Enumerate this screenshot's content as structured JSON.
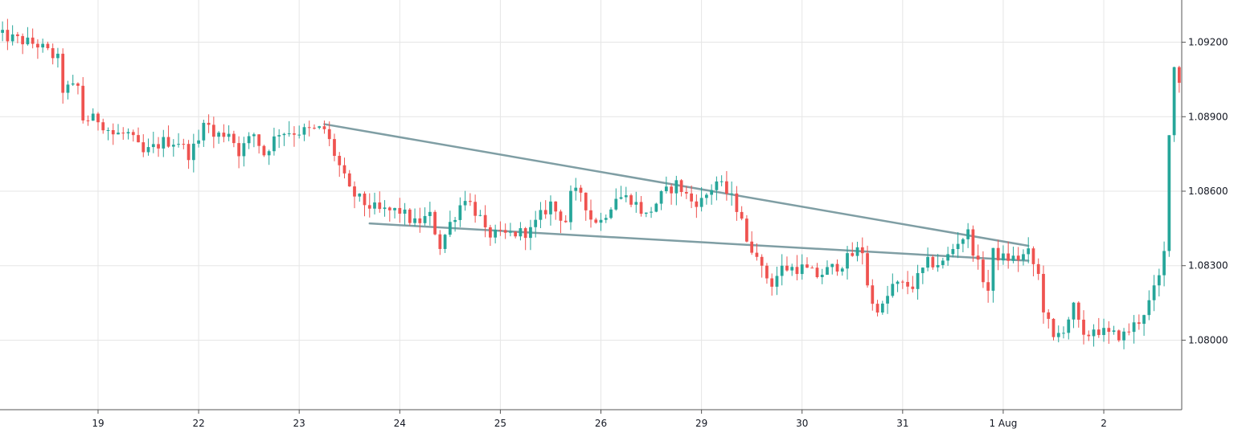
{
  "chart_data": {
    "type": "candlestick",
    "title": "",
    "xlabel": "",
    "ylabel": "",
    "grid": true,
    "colors": {
      "up": "#26a69a",
      "down": "#ef5350",
      "trendline": "#7f9ea4",
      "grid": "#e6e6e6",
      "axis": "#555555",
      "text": "#131722"
    },
    "ylim": [
      1.0772,
      1.0937
    ],
    "y_ticks": [
      {
        "value": 1.08,
        "label": "1.08000"
      },
      {
        "value": 1.083,
        "label": "1.08300"
      },
      {
        "value": 1.086,
        "label": "1.08600"
      },
      {
        "value": 1.089,
        "label": "1.08900"
      },
      {
        "value": 1.092,
        "label": "1.09200"
      }
    ],
    "x_ticks": [
      {
        "index": 20,
        "label": "19"
      },
      {
        "index": 40,
        "label": "22"
      },
      {
        "index": 60,
        "label": "23"
      },
      {
        "index": 80,
        "label": "24"
      },
      {
        "index": 100,
        "label": "25"
      },
      {
        "index": 120,
        "label": "26"
      },
      {
        "index": 140,
        "label": "29"
      },
      {
        "index": 160,
        "label": "30"
      },
      {
        "index": 180,
        "label": "31"
      },
      {
        "index": 200,
        "label": "1 Aug"
      },
      {
        "index": 220,
        "label": "2"
      }
    ],
    "xlim": [
      0.5,
      235.5
    ],
    "trendlines": [
      {
        "from": {
          "index": 65,
          "value": 1.0887
        },
        "to": {
          "index": 205,
          "value": 1.0838
        }
      },
      {
        "from": {
          "index": 74,
          "value": 1.0847
        },
        "to": {
          "index": 205,
          "value": 1.0832
        }
      }
    ],
    "anchors": [
      [
        0,
        1.0923
      ],
      [
        8,
        1.0919
      ],
      [
        12,
        1.0913
      ],
      [
        13,
        1.0901
      ],
      [
        16,
        1.0902
      ],
      [
        17,
        1.0889
      ],
      [
        20,
        1.0889
      ],
      [
        23,
        1.0883
      ],
      [
        26,
        1.0883
      ],
      [
        29,
        1.0875
      ],
      [
        33,
        1.088
      ],
      [
        36,
        1.088
      ],
      [
        38,
        1.0875
      ],
      [
        40,
        1.088
      ],
      [
        41,
        1.089
      ],
      [
        43,
        1.0882
      ],
      [
        46,
        1.0884
      ],
      [
        48,
        1.0876
      ],
      [
        51,
        1.0883
      ],
      [
        53,
        1.0875
      ],
      [
        56,
        1.0884
      ],
      [
        60,
        1.0884
      ],
      [
        65,
        1.0885
      ],
      [
        68,
        1.087
      ],
      [
        70,
        1.086
      ],
      [
        73,
        1.0855
      ],
      [
        76,
        1.0852
      ],
      [
        80,
        1.0852
      ],
      [
        83,
        1.0847
      ],
      [
        86,
        1.085
      ],
      [
        88,
        1.0838
      ],
      [
        90,
        1.0847
      ],
      [
        93,
        1.0858
      ],
      [
        96,
        1.0849
      ],
      [
        97,
        1.0843
      ],
      [
        100,
        1.0842
      ],
      [
        103,
        1.0843
      ],
      [
        106,
        1.0844
      ],
      [
        108,
        1.085
      ],
      [
        110,
        1.0855
      ],
      [
        111,
        1.0852
      ],
      [
        113,
        1.0848
      ],
      [
        114,
        1.0858
      ],
      [
        116,
        1.086
      ],
      [
        118,
        1.0849
      ],
      [
        120,
        1.0848
      ],
      [
        123,
        1.0858
      ],
      [
        126,
        1.0857
      ],
      [
        129,
        1.085
      ],
      [
        132,
        1.0858
      ],
      [
        135,
        1.0863
      ],
      [
        138,
        1.0856
      ],
      [
        140,
        1.0856
      ],
      [
        143,
        1.0864
      ],
      [
        146,
        1.0857
      ],
      [
        148,
        1.085
      ],
      [
        149,
        1.0838
      ],
      [
        151,
        1.0836
      ],
      [
        152,
        1.0828
      ],
      [
        154,
        1.0823
      ],
      [
        156,
        1.0829
      ],
      [
        160,
        1.0829
      ],
      [
        163,
        1.0826
      ],
      [
        166,
        1.0829
      ],
      [
        168,
        1.0831
      ],
      [
        171,
        1.0836
      ],
      [
        172,
        1.0836
      ],
      [
        173,
        1.0823
      ],
      [
        174,
        1.0814
      ],
      [
        176,
        1.0813
      ],
      [
        178,
        1.0822
      ],
      [
        182,
        1.0822
      ],
      [
        185,
        1.0831
      ],
      [
        188,
        1.0831
      ],
      [
        191,
        1.084
      ],
      [
        193,
        1.0843
      ],
      [
        195,
        1.083
      ],
      [
        197,
        1.082
      ],
      [
        198,
        1.0835
      ],
      [
        200,
        1.0833
      ],
      [
        203,
        1.0833
      ],
      [
        205,
        1.0835
      ],
      [
        207,
        1.0826
      ],
      [
        208,
        1.0813
      ],
      [
        210,
        1.08
      ],
      [
        212,
        1.0805
      ],
      [
        214,
        1.0813
      ],
      [
        216,
        1.08
      ],
      [
        218,
        1.0805
      ],
      [
        221,
        1.0802
      ],
      [
        224,
        1.0802
      ],
      [
        227,
        1.0808
      ],
      [
        229,
        1.0815
      ],
      [
        231,
        1.0825
      ],
      [
        232,
        1.0835
      ],
      [
        233,
        1.0885
      ],
      [
        234,
        1.091
      ],
      [
        235,
        1.0905
      ]
    ]
  }
}
